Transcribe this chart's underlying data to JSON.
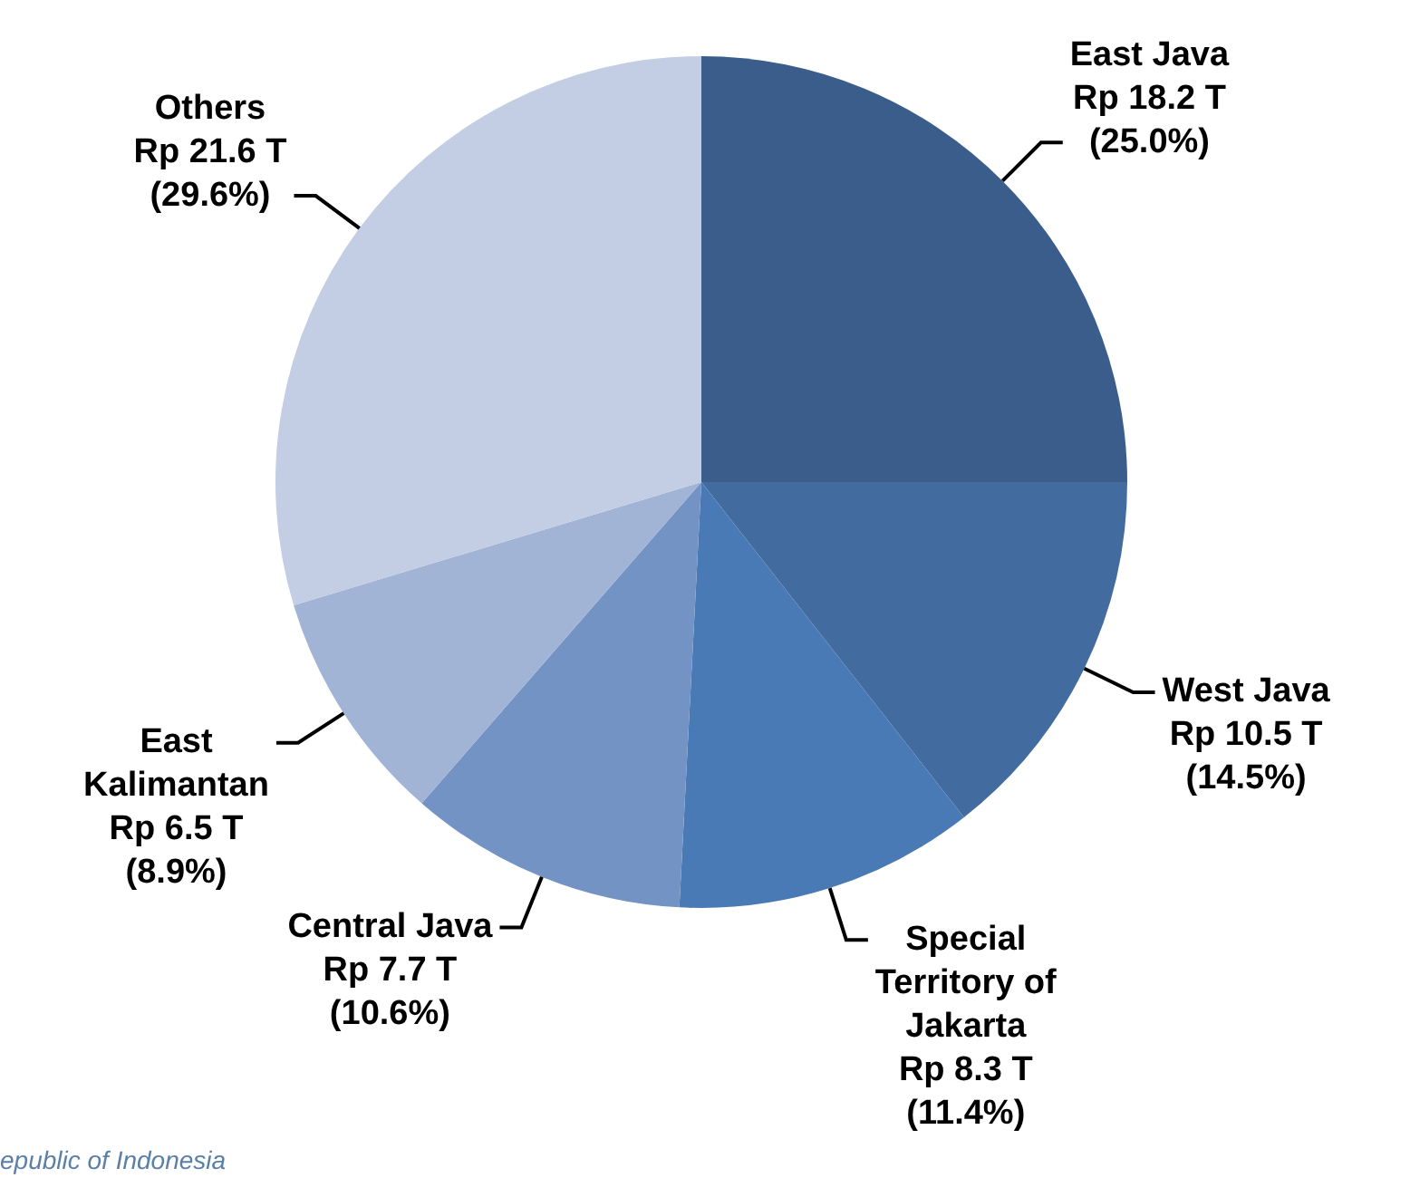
{
  "chart_data": {
    "type": "pie",
    "categories": [
      "East Java",
      "West Java",
      "Special Territory of Jakarta",
      "Central Java",
      "East Kalimantan",
      "Others"
    ],
    "values": [
      18.2,
      10.5,
      8.3,
      7.7,
      6.5,
      21.6
    ],
    "colors": [
      "#3a5d8c",
      "#426c9f",
      "#4a7ab5",
      "#7393c4",
      "#a2b4d6",
      "#c3cde3"
    ],
    "value_labels": [
      "Rp 18.2 T\n(25.0%)",
      "Rp 10.5 T\n(14.5%)",
      "Rp 8.3 T\n(11.4%)",
      "Rp 7.7 T\n(10.6%)",
      "Rp 6.5 T\n(8.9%)",
      "Rp 21.6 T\n(29.6%)"
    ],
    "annotations": [
      "epublic of Indonesia"
    ],
    "legend": false
  }
}
